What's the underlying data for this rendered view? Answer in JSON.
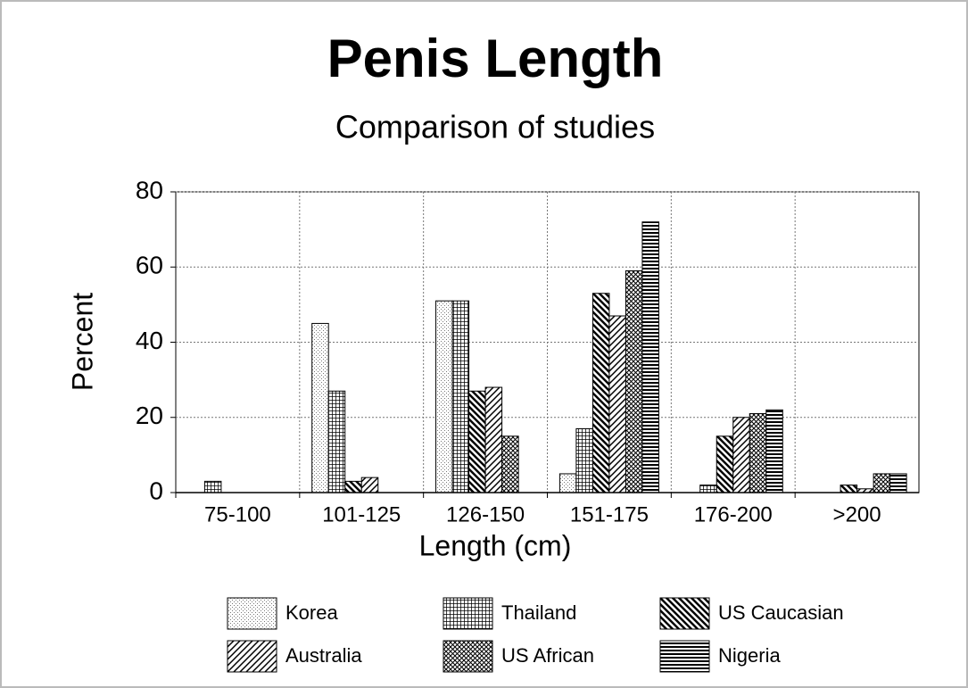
{
  "chart_data": {
    "type": "bar",
    "title": "Penis Length",
    "subtitle": "Comparison of studies",
    "x_label": "Length (cm)",
    "y_label": "Percent",
    "categories": [
      "75-100",
      "101-125",
      "126-150",
      "151-175",
      "176-200",
      ">200"
    ],
    "series": [
      {
        "name": "Korea",
        "color": "#000000",
        "pattern": "dots",
        "values": [
          0,
          45,
          51,
          5,
          0,
          0
        ]
      },
      {
        "name": "Thailand",
        "color": "#000000",
        "pattern": "grid",
        "values": [
          3,
          27,
          51,
          17,
          2,
          0
        ]
      },
      {
        "name": "US Caucasian",
        "color": "#000000",
        "pattern": "backslash",
        "values": [
          0,
          3,
          27,
          53,
          15,
          2
        ]
      },
      {
        "name": "Australia",
        "color": "#000000",
        "pattern": "slash",
        "values": [
          0,
          4,
          28,
          47,
          20,
          1
        ]
      },
      {
        "name": "US African",
        "color": "#000000",
        "pattern": "crosshatch",
        "values": [
          0,
          0,
          15,
          59,
          21,
          5
        ]
      },
      {
        "name": "Nigeria",
        "color": "#000000",
        "pattern": "horizontal",
        "values": [
          0,
          0,
          0,
          72,
          22,
          5
        ]
      }
    ],
    "ylim": [
      0,
      80
    ],
    "yticks": [
      0,
      20,
      40,
      60,
      80
    ],
    "grid": true,
    "legend": "bottom"
  }
}
